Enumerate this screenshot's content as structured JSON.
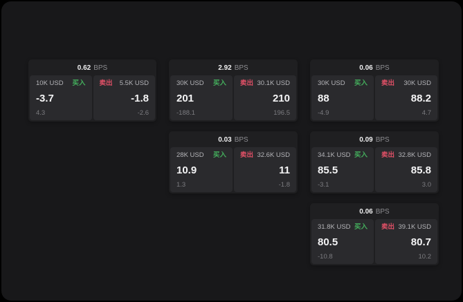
{
  "labels": {
    "bps": "BPS",
    "buy": "买入",
    "sell": "卖出"
  },
  "colors": {
    "buy": "#44ad5c",
    "sell": "#df5066",
    "window_bg": "#18181a",
    "card_bg": "#1f1f21",
    "panel_bg": "#2a2a2d"
  },
  "cards": [
    {
      "row": 1,
      "col": 1,
      "bps": "0.62",
      "buy": {
        "amount": "10K USD",
        "value": "-3.7",
        "sub": "4.3"
      },
      "sell": {
        "amount": "5.5K USD",
        "value": "-1.8",
        "sub": "-2.6"
      }
    },
    {
      "row": 1,
      "col": 2,
      "bps": "2.92",
      "buy": {
        "amount": "30K USD",
        "value": "201",
        "sub": "-188.1"
      },
      "sell": {
        "amount": "30.1K USD",
        "value": "210",
        "sub": "196.5"
      }
    },
    {
      "row": 1,
      "col": 3,
      "bps": "0.06",
      "buy": {
        "amount": "30K USD",
        "value": "88",
        "sub": "-4.9"
      },
      "sell": {
        "amount": "30K USD",
        "value": "88.2",
        "sub": "4.7"
      }
    },
    {
      "row": 2,
      "col": 2,
      "bps": "0.03",
      "buy": {
        "amount": "28K USD",
        "value": "10.9",
        "sub": "1.3"
      },
      "sell": {
        "amount": "32.6K USD",
        "value": "11",
        "sub": "-1.8"
      }
    },
    {
      "row": 2,
      "col": 3,
      "bps": "0.09",
      "buy": {
        "amount": "34.1K USD",
        "value": "85.5",
        "sub": "-3.1"
      },
      "sell": {
        "amount": "32.8K USD",
        "value": "85.8",
        "sub": "3.0"
      }
    },
    {
      "row": 3,
      "col": 3,
      "bps": "0.06",
      "buy": {
        "amount": "31.8K USD",
        "value": "80.5",
        "sub": "-10.8"
      },
      "sell": {
        "amount": "39.1K USD",
        "value": "80.7",
        "sub": "10.2"
      }
    }
  ]
}
